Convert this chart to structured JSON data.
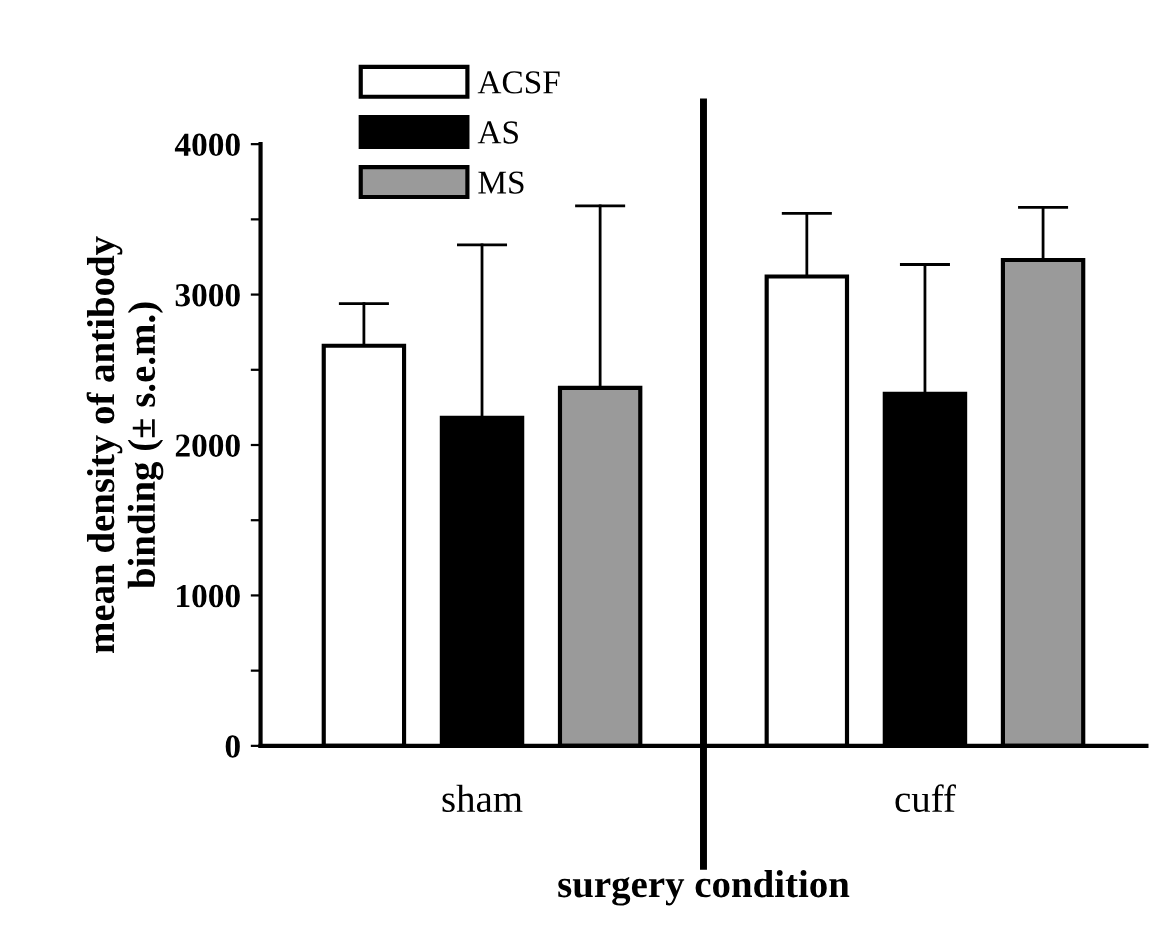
{
  "chart_data": {
    "type": "bar",
    "xlabel": "surgery condition",
    "ylabel": "mean density of antibody\nbinding (± s.e.m.)",
    "categories": [
      "sham",
      "cuff"
    ],
    "series": [
      {
        "name": "ACSF",
        "color": "#ffffff",
        "values": [
          2660,
          3120
        ],
        "errors": [
          [
            2660,
            2940
          ],
          [
            3120,
            3540
          ]
        ]
      },
      {
        "name": "AS",
        "color": "#000000",
        "values": [
          2180,
          2340
        ],
        "errors": [
          [
            2180,
            3330
          ],
          [
            2340,
            3200
          ]
        ]
      },
      {
        "name": "MS",
        "color": "#9a9a9a",
        "values": [
          2380,
          3230
        ],
        "errors": [
          [
            2380,
            3590
          ],
          [
            3230,
            3580
          ]
        ]
      }
    ],
    "ylim": [
      0,
      4000
    ],
    "yticks": [
      0,
      {
        "value": 500,
        "label": null
      },
      1000,
      {
        "value": 1500,
        "label": null
      },
      2000,
      {
        "value": 2500,
        "label": null
      },
      3000,
      {
        "value": 3500,
        "label": null
      },
      4000
    ],
    "legend": "top left",
    "grid": false
  }
}
